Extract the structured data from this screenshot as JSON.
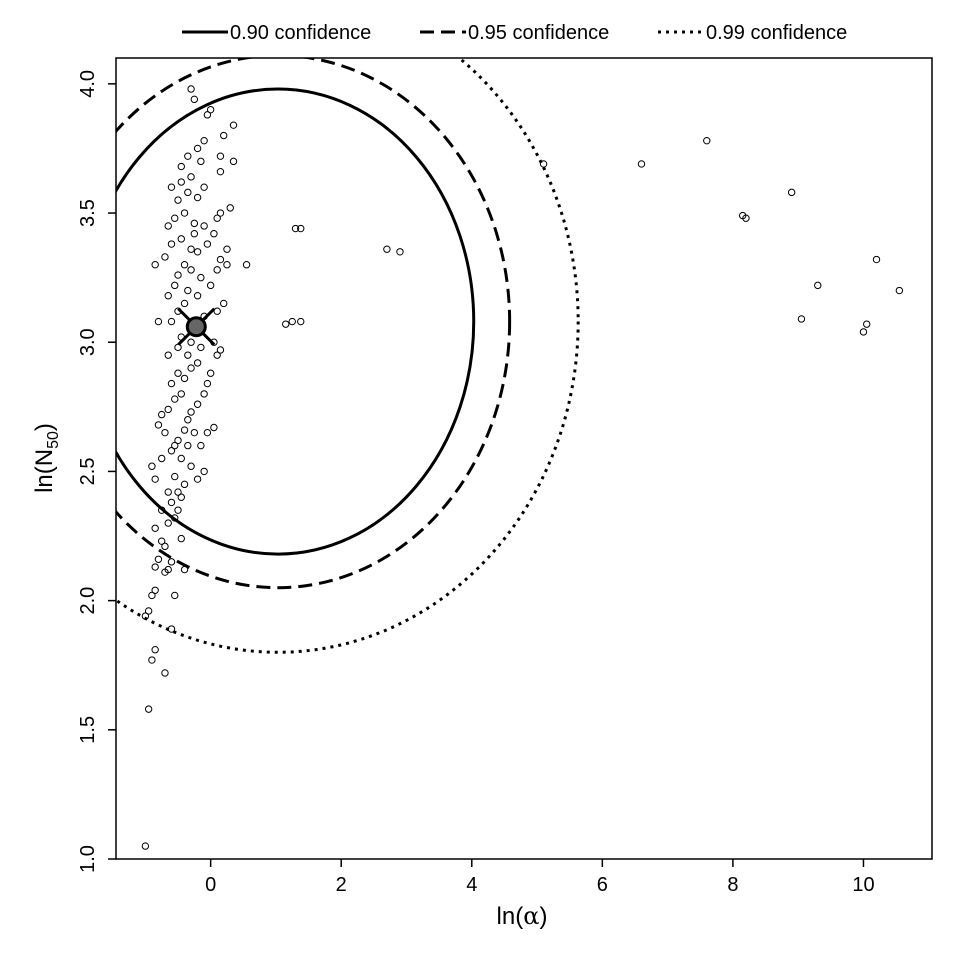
{
  "chart_data": {
    "type": "scatter",
    "xlabel_prefix": "ln(",
    "xlabel_symbol": "α",
    "xlabel_suffix": ")",
    "ylabel_prefix": "ln(N",
    "ylabel_sub": "50",
    "ylabel_suffix": ")",
    "xlim": [
      -1.45,
      11.05
    ],
    "ylim": [
      1.0,
      4.1
    ],
    "xticks": [
      0,
      2,
      4,
      6,
      8,
      10
    ],
    "xtick_labels": [
      "0",
      "2",
      "4",
      "6",
      "8",
      "10"
    ],
    "yticks": [
      1.0,
      1.5,
      2.0,
      2.5,
      3.0,
      3.5,
      4.0
    ],
    "ytick_labels": [
      "1.0",
      "1.5",
      "2.0",
      "2.5",
      "3.0",
      "3.5",
      "4.0"
    ],
    "legend_position": "top",
    "legend": [
      {
        "label": "0.90 confidence",
        "style": "solid"
      },
      {
        "label": "0.95 confidence",
        "style": "dashed"
      },
      {
        "label": "0.99 confidence",
        "style": "dotted"
      }
    ],
    "mle_point": {
      "x": -0.22,
      "y": 3.06
    },
    "ellipses": [
      {
        "level": "0.90",
        "style": "solid",
        "center": [
          1.03,
          3.08
        ],
        "rx": 3.0,
        "ry": 0.9
      },
      {
        "level": "0.95",
        "style": "dashed",
        "center": [
          1.03,
          3.08
        ],
        "rx": 3.55,
        "ry": 1.03
      },
      {
        "level": "0.99",
        "style": "dotted",
        "center": [
          1.03,
          3.08
        ],
        "rx": 4.6,
        "ry": 1.28
      }
    ],
    "points": [
      [
        -1.0,
        1.05
      ],
      [
        -0.95,
        1.58
      ],
      [
        -0.9,
        1.77
      ],
      [
        -0.85,
        1.81
      ],
      [
        -0.7,
        1.72
      ],
      [
        -0.6,
        1.89
      ],
      [
        -1.0,
        1.94
      ],
      [
        -0.95,
        1.96
      ],
      [
        -0.9,
        2.02
      ],
      [
        -0.85,
        2.04
      ],
      [
        -0.55,
        2.02
      ],
      [
        -0.85,
        2.13
      ],
      [
        -0.8,
        2.16
      ],
      [
        -0.7,
        2.11
      ],
      [
        -0.65,
        2.12
      ],
      [
        -0.6,
        2.15
      ],
      [
        -0.7,
        2.21
      ],
      [
        -0.75,
        2.23
      ],
      [
        -0.85,
        2.28
      ],
      [
        -0.65,
        2.3
      ],
      [
        -0.55,
        2.32
      ],
      [
        -0.5,
        2.35
      ],
      [
        -0.6,
        2.38
      ],
      [
        -0.45,
        2.4
      ],
      [
        -0.5,
        2.42
      ],
      [
        -0.4,
        2.45
      ],
      [
        -0.55,
        2.48
      ],
      [
        -0.85,
        2.47
      ],
      [
        -0.9,
        2.52
      ],
      [
        -0.75,
        2.55
      ],
      [
        -0.6,
        2.58
      ],
      [
        -0.45,
        2.55
      ],
      [
        -0.35,
        2.6
      ],
      [
        -0.5,
        2.62
      ],
      [
        -0.4,
        2.66
      ],
      [
        -0.8,
        2.68
      ],
      [
        -0.75,
        2.72
      ],
      [
        -0.65,
        2.74
      ],
      [
        -0.55,
        2.78
      ],
      [
        -0.35,
        2.7
      ],
      [
        -0.25,
        2.65
      ],
      [
        -0.15,
        2.6
      ],
      [
        -0.05,
        2.65
      ],
      [
        0.05,
        2.67
      ],
      [
        -0.3,
        2.73
      ],
      [
        -0.2,
        2.76
      ],
      [
        -0.45,
        2.8
      ],
      [
        -0.6,
        2.84
      ],
      [
        -0.5,
        2.88
      ],
      [
        -0.4,
        2.86
      ],
      [
        -0.3,
        2.9
      ],
      [
        -0.1,
        2.8
      ],
      [
        -0.05,
        2.84
      ],
      [
        0.0,
        2.88
      ],
      [
        -0.2,
        2.92
      ],
      [
        -0.35,
        2.95
      ],
      [
        -0.5,
        2.98
      ],
      [
        -0.45,
        3.02
      ],
      [
        -0.3,
        3.0
      ],
      [
        -0.15,
        2.98
      ],
      [
        0.1,
        2.95
      ],
      [
        0.15,
        2.97
      ],
      [
        0.05,
        3.0
      ],
      [
        -0.6,
        3.08
      ],
      [
        -0.8,
        3.08
      ],
      [
        -0.5,
        3.12
      ],
      [
        -0.4,
        3.15
      ],
      [
        -0.35,
        3.2
      ],
      [
        -0.2,
        3.18
      ],
      [
        -0.1,
        3.1
      ],
      [
        0.2,
        3.15
      ],
      [
        0.1,
        3.12
      ],
      [
        -0.55,
        3.22
      ],
      [
        -0.5,
        3.26
      ],
      [
        -0.4,
        3.3
      ],
      [
        -0.3,
        3.28
      ],
      [
        -0.15,
        3.25
      ],
      [
        0.0,
        3.22
      ],
      [
        0.1,
        3.28
      ],
      [
        0.15,
        3.32
      ],
      [
        0.25,
        3.36
      ],
      [
        -0.7,
        3.33
      ],
      [
        -0.6,
        3.38
      ],
      [
        -0.45,
        3.4
      ],
      [
        -0.3,
        3.36
      ],
      [
        -0.2,
        3.35
      ],
      [
        -0.05,
        3.38
      ],
      [
        -0.85,
        3.3
      ],
      [
        -0.65,
        3.45
      ],
      [
        -0.55,
        3.48
      ],
      [
        -0.4,
        3.5
      ],
      [
        -0.25,
        3.46
      ],
      [
        -0.1,
        3.45
      ],
      [
        0.1,
        3.48
      ],
      [
        0.15,
        3.5
      ],
      [
        0.3,
        3.52
      ],
      [
        -0.5,
        3.55
      ],
      [
        -0.35,
        3.58
      ],
      [
        -0.2,
        3.56
      ],
      [
        -0.6,
        3.6
      ],
      [
        -0.45,
        3.62
      ],
      [
        -0.3,
        3.64
      ],
      [
        -0.1,
        3.6
      ],
      [
        -0.45,
        3.68
      ],
      [
        -0.35,
        3.72
      ],
      [
        -0.2,
        3.75
      ],
      [
        -0.1,
        3.78
      ],
      [
        0.15,
        3.72
      ],
      [
        0.2,
        3.8
      ],
      [
        0.35,
        3.7
      ],
      [
        0.35,
        3.84
      ],
      [
        -0.05,
        3.88
      ],
      [
        0.0,
        3.9
      ],
      [
        -0.25,
        3.94
      ],
      [
        -0.3,
        3.98
      ],
      [
        0.15,
        3.66
      ],
      [
        -0.15,
        3.7
      ],
      [
        0.05,
        3.42
      ],
      [
        0.25,
        3.3
      ],
      [
        -0.65,
        3.18
      ],
      [
        -0.25,
        3.42
      ],
      [
        -0.65,
        2.95
      ],
      [
        -0.7,
        2.65
      ],
      [
        -0.55,
        2.6
      ],
      [
        -0.3,
        2.52
      ],
      [
        -0.2,
        2.47
      ],
      [
        -0.1,
        2.5
      ],
      [
        -0.65,
        2.42
      ],
      [
        -0.75,
        2.35
      ],
      [
        -0.4,
        2.12
      ],
      [
        -0.45,
        2.24
      ],
      [
        0.55,
        3.3
      ],
      [
        1.3,
        3.44
      ],
      [
        1.38,
        3.44
      ],
      [
        1.15,
        3.07
      ],
      [
        1.25,
        3.08
      ],
      [
        1.38,
        3.08
      ],
      [
        2.7,
        3.36
      ],
      [
        2.9,
        3.35
      ],
      [
        5.1,
        3.69
      ],
      [
        6.6,
        3.69
      ],
      [
        7.6,
        3.78
      ],
      [
        8.15,
        3.49
      ],
      [
        8.2,
        3.48
      ],
      [
        8.9,
        3.58
      ],
      [
        9.05,
        3.09
      ],
      [
        9.3,
        3.22
      ],
      [
        10.0,
        3.04
      ],
      [
        10.05,
        3.07
      ],
      [
        10.2,
        3.32
      ],
      [
        10.55,
        3.2
      ]
    ]
  }
}
